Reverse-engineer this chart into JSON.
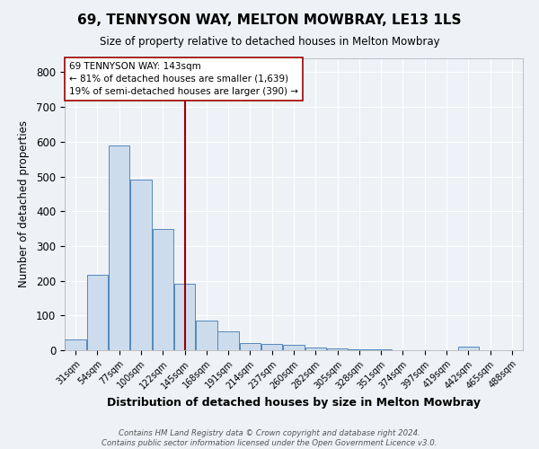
{
  "title": "69, TENNYSON WAY, MELTON MOWBRAY, LE13 1LS",
  "subtitle": "Size of property relative to detached houses in Melton Mowbray",
  "xlabel": "Distribution of detached houses by size in Melton Mowbray",
  "ylabel": "Number of detached properties",
  "bar_values": [
    32,
    218,
    590,
    490,
    350,
    190,
    85,
    55,
    20,
    17,
    15,
    8,
    5,
    3,
    2,
    0,
    0,
    0,
    10,
    0,
    0
  ],
  "bin_labels": [
    "31sqm",
    "54sqm",
    "77sqm",
    "100sqm",
    "122sqm",
    "145sqm",
    "168sqm",
    "191sqm",
    "214sqm",
    "237sqm",
    "260sqm",
    "282sqm",
    "305sqm",
    "328sqm",
    "351sqm",
    "374sqm",
    "397sqm",
    "419sqm",
    "442sqm",
    "465sqm",
    "488sqm"
  ],
  "bar_color": "#ccdcec",
  "bar_edge_color": "#5588bb",
  "vline_x_index": 5,
  "vline_color": "#990000",
  "annotation_text": "69 TENNYSON WAY: 143sqm\n← 81% of detached houses are smaller (1,639)\n19% of semi-detached houses are larger (390) →",
  "annotation_box_color": "white",
  "annotation_box_edge_color": "#990000",
  "background_color": "#eef2f7",
  "grid_color": "#ffffff",
  "ylim": [
    0,
    840
  ],
  "yticks": [
    0,
    100,
    200,
    300,
    400,
    500,
    600,
    700,
    800
  ],
  "footer_line1": "Contains HM Land Registry data © Crown copyright and database right 2024.",
  "footer_line2": "Contains public sector information licensed under the Open Government Licence v3.0."
}
